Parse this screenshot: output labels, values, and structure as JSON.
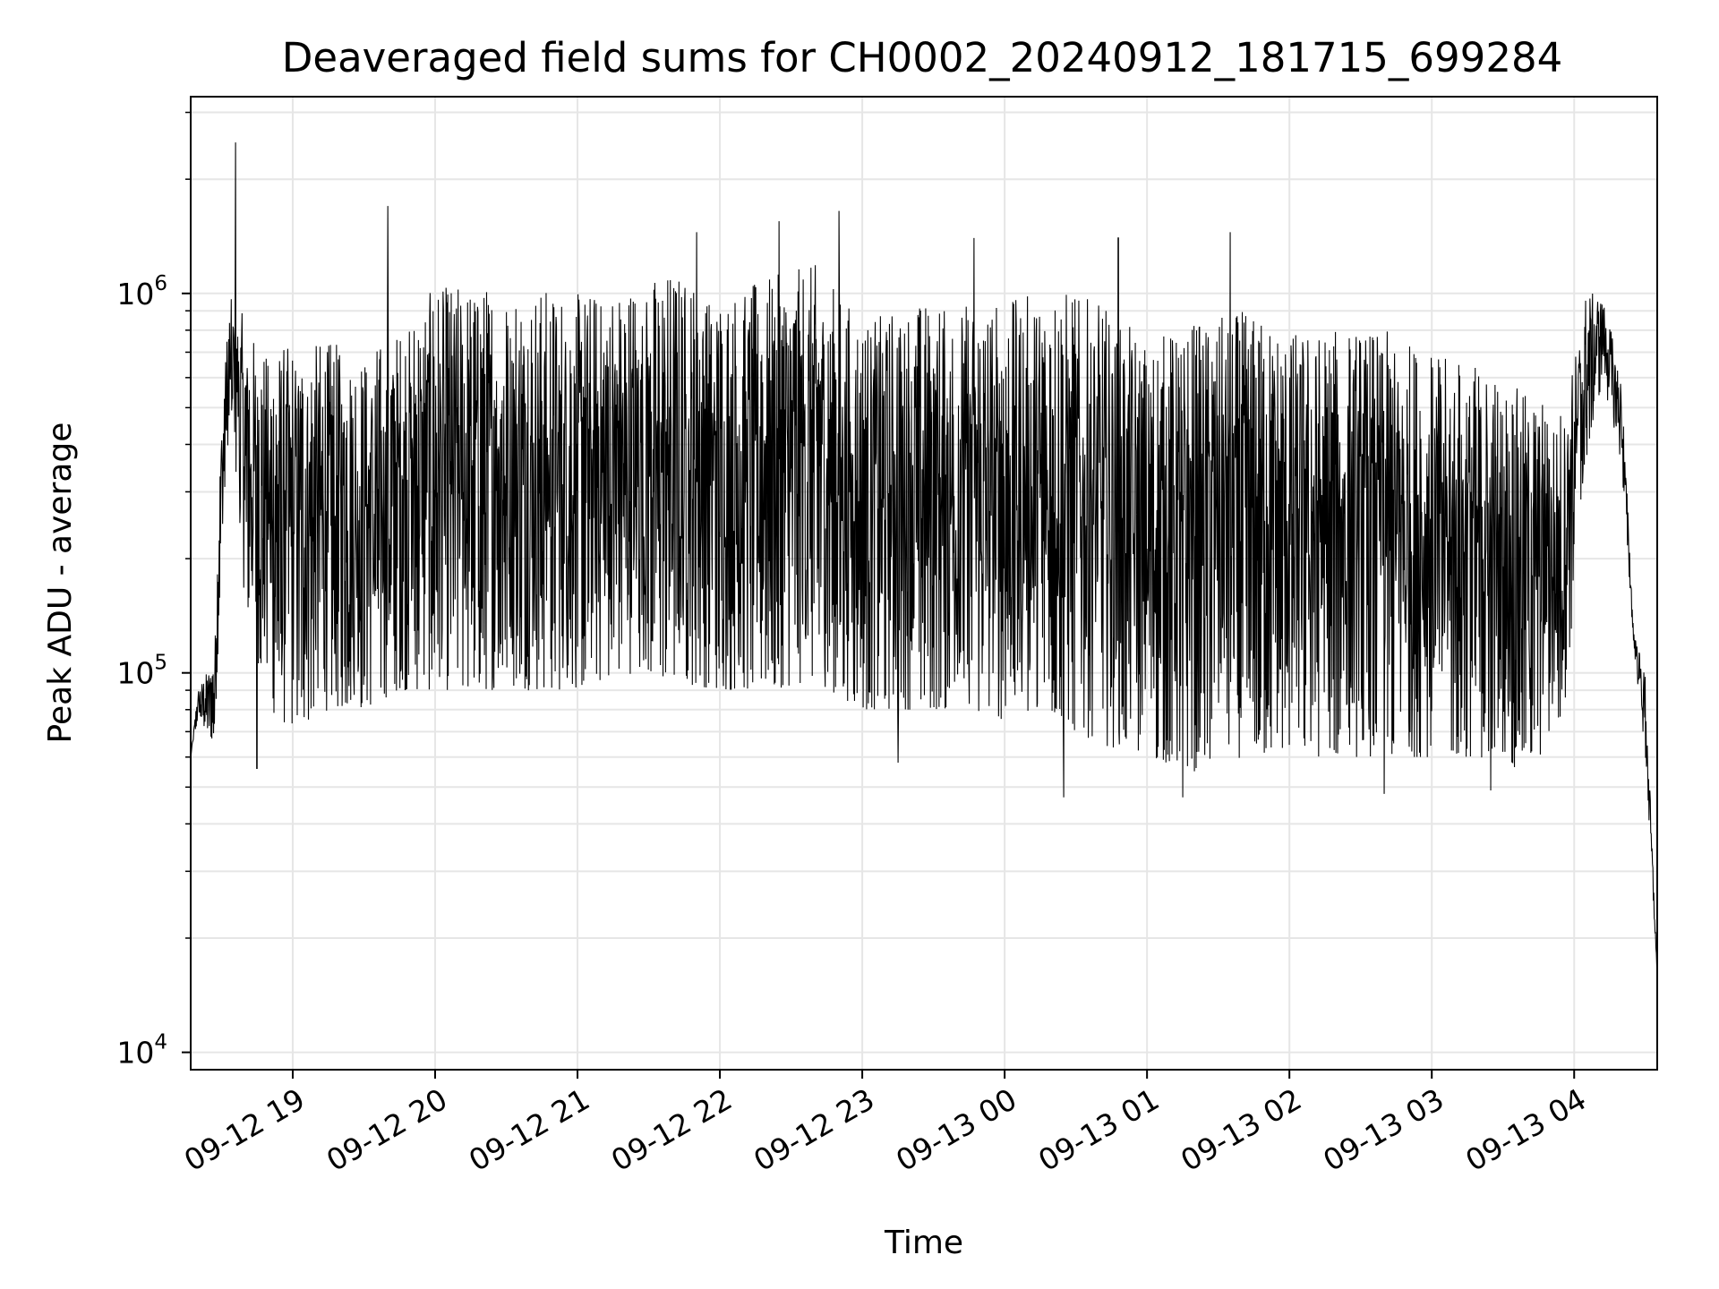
{
  "chart_data": {
    "type": "line",
    "title": "Deaveraged field sums for CH0002_20240912_181715_699284",
    "xlabel": "Time",
    "ylabel": "Peak ADU - average",
    "y_scale": "log",
    "ylim": [
      9000,
      3300000
    ],
    "xlim": [
      "2024-09-12 18:17",
      "2024-09-13 04:35"
    ],
    "grid": true,
    "line_color": "#000000",
    "grid_color": "#e6e6e6",
    "x_ticks": [
      {
        "value": "2024-09-12 19:00",
        "label": "09-12 19"
      },
      {
        "value": "2024-09-12 20:00",
        "label": "09-12 20"
      },
      {
        "value": "2024-09-12 21:00",
        "label": "09-12 21"
      },
      {
        "value": "2024-09-12 22:00",
        "label": "09-12 22"
      },
      {
        "value": "2024-09-12 23:00",
        "label": "09-12 23"
      },
      {
        "value": "2024-09-13 00:00",
        "label": "09-13 00"
      },
      {
        "value": "2024-09-13 01:00",
        "label": "09-13 01"
      },
      {
        "value": "2024-09-13 02:00",
        "label": "09-13 02"
      },
      {
        "value": "2024-09-13 03:00",
        "label": "09-13 03"
      },
      {
        "value": "2024-09-13 04:00",
        "label": "09-13 04"
      }
    ],
    "y_ticks": [
      {
        "value": 10000,
        "base": "10",
        "exp": "4"
      },
      {
        "value": 100000,
        "base": "10",
        "exp": "5"
      },
      {
        "value": 1000000,
        "base": "10",
        "exp": "6"
      }
    ],
    "envelope": {
      "x": [
        "2024-09-12 18:17",
        "2024-09-12 18:20",
        "2024-09-12 18:27",
        "2024-09-12 18:30",
        "2024-09-12 18:33",
        "2024-09-12 18:36",
        "2024-09-12 18:40",
        "2024-09-12 18:50",
        "2024-09-12 19:00",
        "2024-09-12 19:15",
        "2024-09-12 19:30",
        "2024-09-12 19:45",
        "2024-09-12 20:00",
        "2024-09-12 20:20",
        "2024-09-12 20:40",
        "2024-09-12 21:00",
        "2024-09-12 21:20",
        "2024-09-12 21:40",
        "2024-09-12 22:00",
        "2024-09-12 22:20",
        "2024-09-12 22:40",
        "2024-09-12 23:00",
        "2024-09-12 23:20",
        "2024-09-12 23:40",
        "2024-09-13 00:00",
        "2024-09-13 00:20",
        "2024-09-13 00:40",
        "2024-09-13 01:00",
        "2024-09-13 01:20",
        "2024-09-13 01:40",
        "2024-09-13 02:00",
        "2024-09-13 02:20",
        "2024-09-13 02:40",
        "2024-09-13 03:00",
        "2024-09-13 03:20",
        "2024-09-13 03:40",
        "2024-09-13 03:55",
        "2024-09-13 04:05",
        "2024-09-13 04:12",
        "2024-09-13 04:20",
        "2024-09-13 04:25",
        "2024-09-13 04:30",
        "2024-09-13 04:35"
      ],
      "upper": [
        60000,
        90000,
        110000,
        500000,
        900000,
        1100000,
        800000,
        700000,
        750000,
        750000,
        700000,
        800000,
        1050000,
        1050000,
        1050000,
        1000000,
        1050000,
        1150000,
        1000000,
        1100000,
        1200000,
        850000,
        950000,
        950000,
        950000,
        1050000,
        950000,
        750000,
        850000,
        900000,
        800000,
        800000,
        800000,
        700000,
        650000,
        550000,
        500000,
        1000000,
        1000000,
        600000,
        130000,
        100000,
        16000
      ],
      "lower": [
        60000,
        75000,
        65000,
        200000,
        400000,
        300000,
        150000,
        80000,
        70000,
        80000,
        80000,
        90000,
        90000,
        90000,
        90000,
        90000,
        100000,
        95000,
        90000,
        90000,
        95000,
        80000,
        80000,
        80000,
        75000,
        75000,
        65000,
        60000,
        55000,
        60000,
        60000,
        60000,
        60000,
        60000,
        60000,
        55000,
        70000,
        350000,
        600000,
        350000,
        120000,
        60000,
        16000
      ]
    },
    "spikes": [
      {
        "x": "2024-09-12 18:36",
        "y": 2500000
      },
      {
        "x": "2024-09-12 19:40",
        "y": 1700000
      },
      {
        "x": "2024-09-12 21:50",
        "y": 1450000
      },
      {
        "x": "2024-09-12 22:25",
        "y": 1550000
      },
      {
        "x": "2024-09-12 22:50",
        "y": 1650000
      },
      {
        "x": "2024-09-12 23:47",
        "y": 1400000
      },
      {
        "x": "2024-09-13 00:48",
        "y": 1400000
      },
      {
        "x": "2024-09-13 01:35",
        "y": 1450000
      },
      {
        "x": "2024-09-13 00:25",
        "y": 47000
      },
      {
        "x": "2024-09-13 01:15",
        "y": 47000
      },
      {
        "x": "2024-09-13 02:40",
        "y": 48000
      },
      {
        "x": "2024-09-13 03:25",
        "y": 49000
      },
      {
        "x": "2024-09-12 18:45",
        "y": 56000
      },
      {
        "x": "2024-09-12 23:15",
        "y": 58000
      }
    ]
  }
}
